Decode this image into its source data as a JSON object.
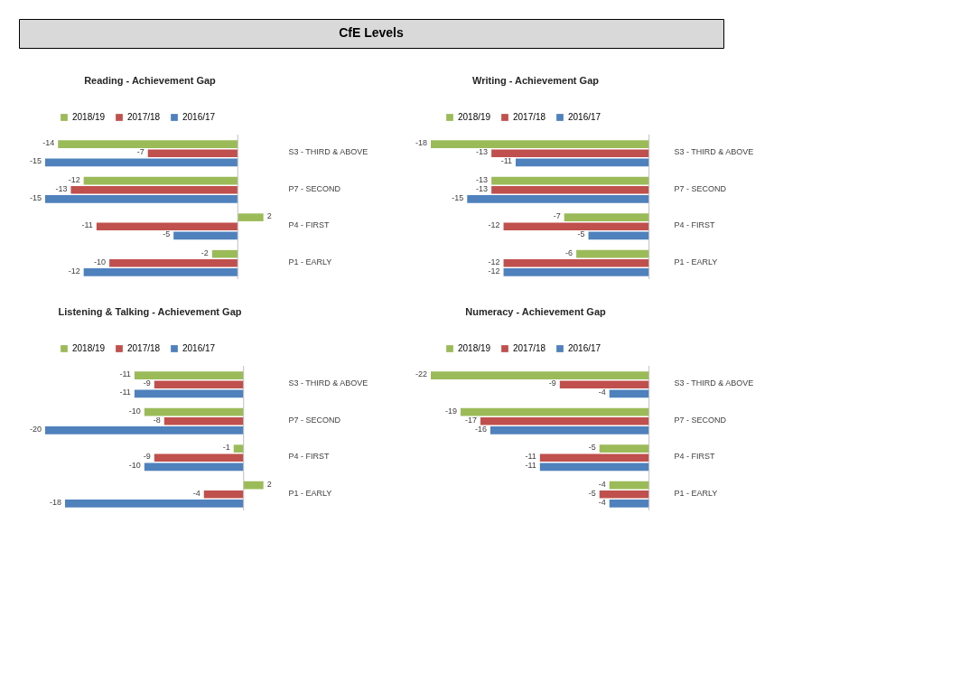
{
  "chart_data": [
    {
      "type": "other",
      "title": "CfE Levels"
    },
    {
      "type": "bar",
      "orientation": "horizontal",
      "title": "Reading - Achievement Gap",
      "legend": "top",
      "data_labels": true,
      "grid": false,
      "categories": [
        "S3 - THIRD & ABOVE",
        "P7 - SECOND",
        "P4 - FIRST",
        "P1 - EARLY"
      ],
      "series": [
        {
          "name": "2018/19",
          "color": "#9bbb59",
          "values": [
            -14,
            -12,
            2,
            -2
          ]
        },
        {
          "name": "2017/18",
          "color": "#c0504d",
          "values": [
            -7,
            -13,
            -11,
            -10
          ]
        },
        {
          "name": "2016/17",
          "color": "#4f81bd",
          "values": [
            -15,
            -15,
            -5,
            -12
          ]
        }
      ]
    },
    {
      "type": "bar",
      "orientation": "horizontal",
      "title": "Writing - Achievement Gap",
      "legend": "top",
      "data_labels": true,
      "grid": false,
      "categories": [
        "S3 - THIRD & ABOVE",
        "P7 - SECOND",
        "P4 - FIRST",
        "P1 - EARLY"
      ],
      "series": [
        {
          "name": "2018/19",
          "color": "#9bbb59",
          "values": [
            -18,
            -13,
            -7,
            -6
          ]
        },
        {
          "name": "2017/18",
          "color": "#c0504d",
          "values": [
            -13,
            -13,
            -12,
            -12
          ]
        },
        {
          "name": "2016/17",
          "color": "#4f81bd",
          "values": [
            -11,
            -15,
            -5,
            -12
          ]
        }
      ]
    },
    {
      "type": "bar",
      "orientation": "horizontal",
      "title": "Listening & Talking - Achievement Gap",
      "legend": "top",
      "data_labels": true,
      "grid": false,
      "categories": [
        "S3 - THIRD & ABOVE",
        "P7 - SECOND",
        "P4 - FIRST",
        "P1 - EARLY"
      ],
      "series": [
        {
          "name": "2018/19",
          "color": "#9bbb59",
          "values": [
            -11,
            -10,
            -1,
            2
          ]
        },
        {
          "name": "2017/18",
          "color": "#c0504d",
          "values": [
            -9,
            -8,
            -9,
            -4
          ]
        },
        {
          "name": "2016/17",
          "color": "#4f81bd",
          "values": [
            -11,
            -20,
            -10,
            -18
          ]
        }
      ]
    },
    {
      "type": "bar",
      "orientation": "horizontal",
      "title": "Numeracy - Achievement Gap",
      "legend": "top",
      "data_labels": true,
      "grid": false,
      "categories": [
        "S3 - THIRD & ABOVE",
        "P7 - SECOND",
        "P4 - FIRST",
        "P1 - EARLY"
      ],
      "series": [
        {
          "name": "2018/19",
          "color": "#9bbb59",
          "values": [
            -22,
            -19,
            -5,
            -4
          ]
        },
        {
          "name": "2017/18",
          "color": "#c0504d",
          "values": [
            -9,
            -17,
            -11,
            -5
          ]
        },
        {
          "name": "2016/17",
          "color": "#4f81bd",
          "values": [
            -4,
            -16,
            -11,
            -4
          ]
        }
      ]
    }
  ]
}
